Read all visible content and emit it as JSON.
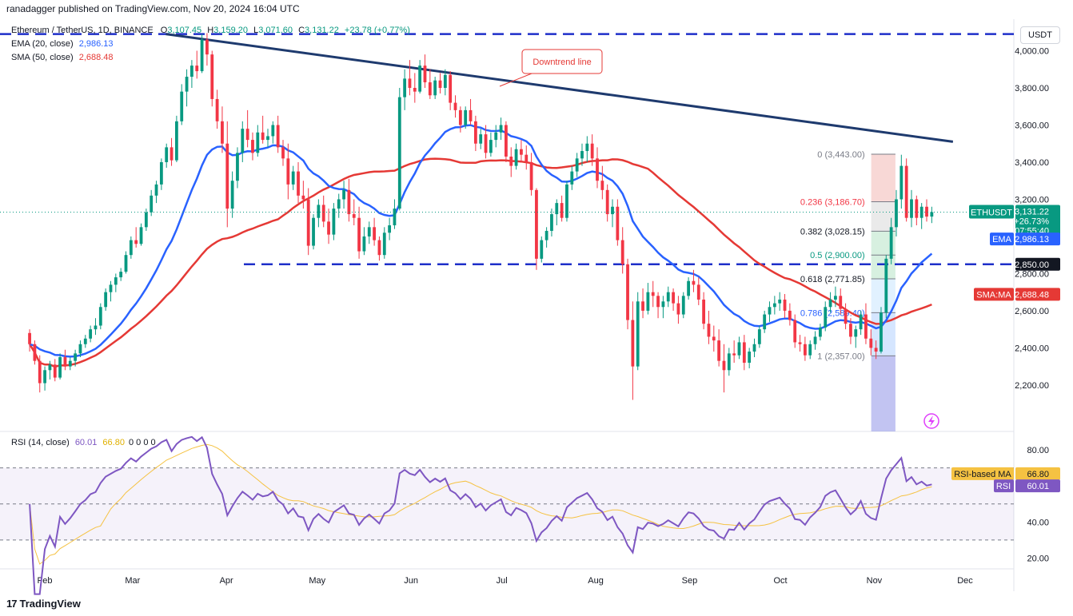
{
  "header": {
    "published": "ranadagger published on TradingView.com, Nov 20, 2024 16:04 UTC"
  },
  "legend": {
    "symbol": "Ethereum / TetherUS, 1D, BINANCE",
    "o_label": "O",
    "o_value": "3,107.45",
    "h_label": "H",
    "h_value": "3,159.20",
    "l_label": "L",
    "l_value": "3,071.60",
    "c_label": "C",
    "c_value": "3,131.22",
    "change": "+23.78 (+0.77%)",
    "ema_label": "EMA (20, close)",
    "ema_value": "2,986.13",
    "sma_label": "SMA (50, close)",
    "sma_value": "2,688.48"
  },
  "rsi_legend": {
    "label": "RSI (14, close)",
    "value": "60.01",
    "ma_value": "66.80",
    "extra": "0 0 0 0"
  },
  "currency": "USDT",
  "footer": {
    "brand": "TradingView"
  },
  "colors": {
    "up": "#089981",
    "down": "#f23645",
    "ema": "#2962ff",
    "sma": "#e53935",
    "rsi": "#7e57c2",
    "rsi_ma": "#f5c242",
    "trend": "#1e3a6e",
    "level": "#1e2fc9"
  },
  "annotation": {
    "text": "Downtrend line"
  },
  "price_labels": {
    "last_sym": "ETHUSDT",
    "last_price": "3,131.22",
    "last_change": "+26.73%",
    "last_time": "07:55:40",
    "ema": "EMA",
    "ema_price": "2,986.13",
    "level": "2,850.00",
    "sma": "SMA:MA",
    "sma_price": "2,688.48",
    "rsi_ma": "RSI-based MA",
    "rsi_ma_val": "66.80",
    "rsi": "RSI",
    "rsi_val": "60.01"
  },
  "fib": [
    {
      "ratio": "0",
      "price": "3,443.00",
      "label": "0 (3,443.00)"
    },
    {
      "ratio": "0.236",
      "price": "3,186.70",
      "label": "0.236 (3,186.70)"
    },
    {
      "ratio": "0.382",
      "price": "3,028.15",
      "label": "0.382 (3,028.15)"
    },
    {
      "ratio": "0.5",
      "price": "2,900.00",
      "label": "0.5 (2,900.00)"
    },
    {
      "ratio": "0.618",
      "price": "2,771.85",
      "label": "0.618 (2,771.85)"
    },
    {
      "ratio": "0.786",
      "price": "2,589.40",
      "label": "0.786 (2,589.40)"
    },
    {
      "ratio": "1",
      "price": "2,357.00",
      "label": "1 (2,357.00)"
    }
  ],
  "chart_data": {
    "type": "candlestick",
    "price_axis_ticks": [
      "4,000.00",
      "3,800.00",
      "3,600.00",
      "3,400.00",
      "3,200.00",
      "2,800.00",
      "2,600.00",
      "2,400.00",
      "2,200.00"
    ],
    "price_axis_values": [
      4000,
      3800,
      3600,
      3400,
      3200,
      2800,
      2600,
      2400,
      2200
    ],
    "rsi_axis_ticks": [
      "80.00",
      "40.00",
      "20.00"
    ],
    "rsi_axis_values": [
      80,
      40,
      20
    ],
    "x_ticks": [
      "Feb",
      "Mar",
      "Apr",
      "May",
      "Jun",
      "Jul",
      "Aug",
      "Sep",
      "Oct",
      "Nov",
      "Dec"
    ],
    "price_range": [
      1950,
      4170
    ],
    "rsi_range": [
      14,
      88
    ],
    "support_level": 2850,
    "resistance_level": 4090,
    "trendline": [
      {
        "date": "2024-03-12",
        "price": 4090
      },
      {
        "date": "2024-11-27",
        "price": 3510
      }
    ],
    "rsi_bands": [
      70,
      50,
      30
    ],
    "candles_ohlc_approx": [
      [
        2480,
        2500,
        2380,
        2420
      ],
      [
        2420,
        2440,
        2310,
        2330
      ],
      [
        2330,
        2360,
        2160,
        2210
      ],
      [
        2210,
        2300,
        2170,
        2280
      ],
      [
        2280,
        2330,
        2230,
        2310
      ],
      [
        2310,
        2340,
        2220,
        2240
      ],
      [
        2240,
        2370,
        2230,
        2350
      ],
      [
        2350,
        2390,
        2280,
        2300
      ],
      [
        2300,
        2350,
        2280,
        2330
      ],
      [
        2330,
        2390,
        2300,
        2370
      ],
      [
        2370,
        2440,
        2350,
        2420
      ],
      [
        2420,
        2470,
        2400,
        2450
      ],
      [
        2450,
        2520,
        2430,
        2500
      ],
      [
        2500,
        2560,
        2470,
        2520
      ],
      [
        2520,
        2640,
        2500,
        2620
      ],
      [
        2620,
        2720,
        2600,
        2700
      ],
      [
        2700,
        2760,
        2650,
        2740
      ],
      [
        2740,
        2800,
        2700,
        2780
      ],
      [
        2780,
        2830,
        2760,
        2810
      ],
      [
        2810,
        2920,
        2800,
        2900
      ],
      [
        2900,
        3000,
        2880,
        2980
      ],
      [
        2980,
        3050,
        2940,
        2960
      ],
      [
        2960,
        3070,
        2950,
        3050
      ],
      [
        3050,
        3150,
        3030,
        3130
      ],
      [
        3130,
        3250,
        3110,
        3220
      ],
      [
        3220,
        3300,
        3180,
        3280
      ],
      [
        3280,
        3420,
        3250,
        3400
      ],
      [
        3400,
        3500,
        3370,
        3480
      ],
      [
        3480,
        3530,
        3380,
        3410
      ],
      [
        3410,
        3650,
        3400,
        3620
      ],
      [
        3620,
        3820,
        3600,
        3780
      ],
      [
        3780,
        3900,
        3700,
        3860
      ],
      [
        3860,
        3950,
        3800,
        3920
      ],
      [
        3920,
        4000,
        3850,
        3890
      ],
      [
        3890,
        4090,
        3880,
        4060
      ],
      [
        4060,
        4095,
        3920,
        3980
      ],
      [
        3980,
        4000,
        3700,
        3740
      ],
      [
        3740,
        3790,
        3580,
        3620
      ],
      [
        3620,
        3700,
        3450,
        3500
      ],
      [
        3500,
        3620,
        3050,
        3150
      ],
      [
        3150,
        3350,
        3100,
        3300
      ],
      [
        3300,
        3480,
        3260,
        3450
      ],
      [
        3450,
        3620,
        3400,
        3580
      ],
      [
        3580,
        3680,
        3480,
        3520
      ],
      [
        3520,
        3560,
        3410,
        3450
      ],
      [
        3450,
        3600,
        3430,
        3560
      ],
      [
        3560,
        3650,
        3500,
        3520
      ],
      [
        3520,
        3580,
        3480,
        3540
      ],
      [
        3540,
        3620,
        3500,
        3600
      ],
      [
        3600,
        3650,
        3450,
        3480
      ],
      [
        3480,
        3520,
        3380,
        3420
      ],
      [
        3420,
        3500,
        3200,
        3280
      ],
      [
        3280,
        3380,
        3250,
        3350
      ],
      [
        3350,
        3400,
        3180,
        3220
      ],
      [
        3220,
        3300,
        3150,
        3200
      ],
      [
        3200,
        3260,
        2900,
        2950
      ],
      [
        2950,
        3120,
        2930,
        3100
      ],
      [
        3100,
        3200,
        3050,
        3170
      ],
      [
        3170,
        3220,
        3050,
        3080
      ],
      [
        3080,
        3150,
        2960,
        3010
      ],
      [
        3010,
        3180,
        2980,
        3150
      ],
      [
        3150,
        3230,
        3100,
        3200
      ],
      [
        3200,
        3300,
        3150,
        3250
      ],
      [
        3250,
        3310,
        3080,
        3120
      ],
      [
        3120,
        3200,
        3060,
        3100
      ],
      [
        3100,
        3160,
        2880,
        2920
      ],
      [
        2920,
        3050,
        2900,
        3000
      ],
      [
        3000,
        3080,
        2960,
        3050
      ],
      [
        3050,
        3100,
        2950,
        2980
      ],
      [
        2980,
        3000,
        2870,
        2900
      ],
      [
        2900,
        3050,
        2880,
        3020
      ],
      [
        3020,
        3100,
        2980,
        3060
      ],
      [
        3060,
        3200,
        3040,
        3150
      ],
      [
        3150,
        3800,
        3140,
        3750
      ],
      [
        3750,
        3900,
        3680,
        3850
      ],
      [
        3850,
        3950,
        3760,
        3800
      ],
      [
        3800,
        3880,
        3720,
        3780
      ],
      [
        3780,
        3950,
        3770,
        3920
      ],
      [
        3920,
        3980,
        3800,
        3830
      ],
      [
        3830,
        3900,
        3740,
        3760
      ],
      [
        3760,
        3860,
        3740,
        3840
      ],
      [
        3840,
        3880,
        3770,
        3800
      ],
      [
        3800,
        3900,
        3760,
        3870
      ],
      [
        3870,
        3890,
        3680,
        3720
      ],
      [
        3720,
        3760,
        3640,
        3680
      ],
      [
        3680,
        3700,
        3560,
        3600
      ],
      [
        3600,
        3700,
        3580,
        3680
      ],
      [
        3680,
        3740,
        3600,
        3620
      ],
      [
        3620,
        3650,
        3460,
        3500
      ],
      [
        3500,
        3580,
        3470,
        3550
      ],
      [
        3550,
        3600,
        3420,
        3450
      ],
      [
        3450,
        3560,
        3430,
        3520
      ],
      [
        3520,
        3600,
        3480,
        3560
      ],
      [
        3560,
        3640,
        3520,
        3600
      ],
      [
        3600,
        3620,
        3400,
        3430
      ],
      [
        3430,
        3480,
        3320,
        3380
      ],
      [
        3380,
        3500,
        3360,
        3470
      ],
      [
        3470,
        3520,
        3400,
        3440
      ],
      [
        3440,
        3490,
        3360,
        3400
      ],
      [
        3400,
        3450,
        3220,
        3250
      ],
      [
        3250,
        3260,
        2820,
        2880
      ],
      [
        2880,
        3000,
        2860,
        2980
      ],
      [
        2980,
        3050,
        2940,
        3030
      ],
      [
        3030,
        3150,
        3000,
        3120
      ],
      [
        3120,
        3200,
        3060,
        3180
      ],
      [
        3180,
        3220,
        3080,
        3100
      ],
      [
        3100,
        3300,
        3080,
        3280
      ],
      [
        3280,
        3380,
        3250,
        3350
      ],
      [
        3350,
        3450,
        3320,
        3420
      ],
      [
        3420,
        3500,
        3380,
        3460
      ],
      [
        3460,
        3540,
        3400,
        3500
      ],
      [
        3500,
        3550,
        3380,
        3420
      ],
      [
        3420,
        3480,
        3260,
        3300
      ],
      [
        3300,
        3380,
        3200,
        3250
      ],
      [
        3250,
        3280,
        3080,
        3120
      ],
      [
        3120,
        3200,
        3050,
        3160
      ],
      [
        3160,
        3200,
        2950,
        2980
      ],
      [
        2980,
        3050,
        2800,
        2850
      ],
      [
        2850,
        2880,
        2500,
        2550
      ],
      [
        2550,
        2650,
        2120,
        2300
      ],
      [
        2300,
        2700,
        2280,
        2650
      ],
      [
        2650,
        2720,
        2560,
        2600
      ],
      [
        2600,
        2750,
        2580,
        2700
      ],
      [
        2700,
        2760,
        2620,
        2680
      ],
      [
        2680,
        2700,
        2560,
        2620
      ],
      [
        2620,
        2680,
        2560,
        2650
      ],
      [
        2650,
        2730,
        2620,
        2700
      ],
      [
        2700,
        2720,
        2600,
        2640
      ],
      [
        2640,
        2680,
        2530,
        2580
      ],
      [
        2580,
        2700,
        2560,
        2680
      ],
      [
        2680,
        2780,
        2660,
        2760
      ],
      [
        2760,
        2820,
        2700,
        2740
      ],
      [
        2740,
        2780,
        2630,
        2660
      ],
      [
        2660,
        2700,
        2500,
        2530
      ],
      [
        2530,
        2600,
        2420,
        2460
      ],
      [
        2460,
        2520,
        2380,
        2440
      ],
      [
        2440,
        2500,
        2300,
        2330
      ],
      [
        2330,
        2420,
        2160,
        2280
      ],
      [
        2280,
        2400,
        2250,
        2370
      ],
      [
        2370,
        2440,
        2320,
        2360
      ],
      [
        2360,
        2460,
        2340,
        2430
      ],
      [
        2430,
        2470,
        2280,
        2320
      ],
      [
        2320,
        2400,
        2290,
        2380
      ],
      [
        2380,
        2450,
        2350,
        2420
      ],
      [
        2420,
        2520,
        2400,
        2500
      ],
      [
        2500,
        2600,
        2480,
        2580
      ],
      [
        2580,
        2650,
        2540,
        2620
      ],
      [
        2620,
        2680,
        2580,
        2640
      ],
      [
        2640,
        2700,
        2600,
        2660
      ],
      [
        2660,
        2690,
        2560,
        2600
      ],
      [
        2600,
        2640,
        2520,
        2550
      ],
      [
        2550,
        2580,
        2400,
        2430
      ],
      [
        2430,
        2470,
        2380,
        2420
      ],
      [
        2420,
        2460,
        2330,
        2360
      ],
      [
        2360,
        2440,
        2340,
        2420
      ],
      [
        2420,
        2490,
        2390,
        2460
      ],
      [
        2460,
        2530,
        2440,
        2510
      ],
      [
        2510,
        2650,
        2490,
        2620
      ],
      [
        2620,
        2700,
        2590,
        2660
      ],
      [
        2660,
        2730,
        2620,
        2680
      ],
      [
        2680,
        2720,
        2580,
        2610
      ],
      [
        2610,
        2640,
        2500,
        2530
      ],
      [
        2530,
        2560,
        2420,
        2460
      ],
      [
        2460,
        2520,
        2400,
        2500
      ],
      [
        2500,
        2600,
        2470,
        2580
      ],
      [
        2580,
        2640,
        2420,
        2450
      ],
      [
        2450,
        2500,
        2360,
        2400
      ],
      [
        2400,
        2440,
        2340,
        2380
      ],
      [
        2380,
        2620,
        2370,
        2590
      ],
      [
        2590,
        2900,
        2560,
        2880
      ],
      [
        2880,
        3100,
        2850,
        3050
      ],
      [
        3050,
        3250,
        3000,
        3200
      ],
      [
        3200,
        3440,
        3150,
        3380
      ],
      [
        3380,
        3420,
        3080,
        3100
      ],
      [
        3100,
        3250,
        3050,
        3200
      ],
      [
        3200,
        3220,
        3060,
        3100
      ],
      [
        3100,
        3180,
        3040,
        3160
      ],
      [
        3160,
        3200,
        3080,
        3107
      ],
      [
        3107,
        3160,
        3072,
        3131
      ]
    ]
  }
}
